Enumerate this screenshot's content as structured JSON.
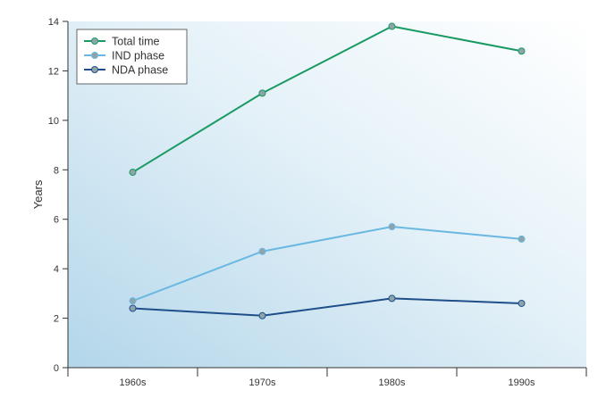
{
  "chart_data": {
    "type": "line",
    "title": "",
    "xlabel": "",
    "ylabel": "Years",
    "categories": [
      "1960s",
      "1970s",
      "1980s",
      "1990s"
    ],
    "ylim": [
      0,
      14
    ],
    "yticks": [
      0,
      2,
      4,
      6,
      8,
      10,
      12,
      14
    ],
    "grid": false,
    "legend_position": "top-left",
    "series": [
      {
        "name": "Total time",
        "values": [
          7.9,
          11.1,
          13.8,
          12.8
        ],
        "color": "#1a9a63"
      },
      {
        "name": "IND phase",
        "values": [
          2.7,
          4.7,
          5.7,
          5.2
        ],
        "color": "#6ab8e2"
      },
      {
        "name": "NDA phase",
        "values": [
          2.4,
          2.1,
          2.8,
          2.6
        ],
        "color": "#1f4f8b"
      }
    ],
    "colors": {
      "background_start": "#b3d6ea",
      "background_end": "#ffffff",
      "axis": "#333333",
      "marker_fill": "#8fa3a8"
    }
  }
}
